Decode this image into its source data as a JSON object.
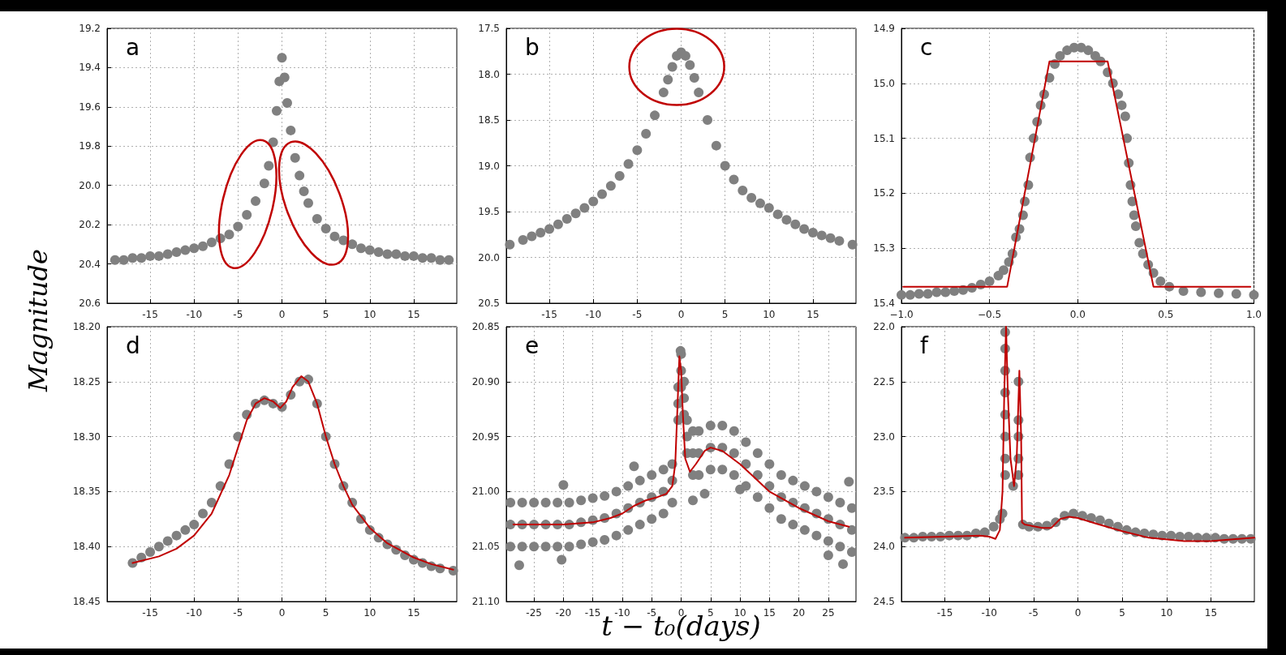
{
  "chart_data": [
    {
      "type": "scatter",
      "title": "a",
      "ylabel": "Magnitude",
      "xlim": [
        -19.9,
        19.9
      ],
      "ylim": [
        20.6,
        19.2
      ],
      "xticks": [
        -15,
        -10,
        -5,
        0,
        5,
        10,
        15
      ],
      "yticks": [
        19.2,
        19.4,
        19.6,
        19.8,
        {
          "value": 20,
          "label": "20.0"
        },
        20.2,
        20.4,
        20.6
      ],
      "grid": true,
      "marker": "circle",
      "series": [
        {
          "type": "scatter",
          "color": "#808080",
          "x": [
            -19,
            -18,
            -17,
            -16,
            -15,
            -14,
            -13,
            -12,
            -11,
            -10,
            -9,
            -8,
            -7,
            -6,
            -5,
            -4,
            -3,
            -2,
            -1.5,
            -1,
            -0.6,
            -0.3,
            0,
            0.3,
            0.6,
            1,
            1.5,
            2,
            2.5,
            3,
            4,
            5,
            6,
            7,
            8,
            9,
            10,
            11,
            12,
            13,
            14,
            15,
            16,
            17,
            18,
            19
          ],
          "values": [
            20.38,
            20.38,
            20.37,
            20.37,
            20.36,
            20.36,
            20.35,
            20.34,
            20.33,
            20.32,
            20.31,
            20.29,
            20.27,
            20.25,
            20.21,
            20.15,
            20.08,
            19.99,
            19.9,
            19.78,
            19.62,
            19.47,
            19.35,
            19.45,
            19.58,
            19.72,
            19.86,
            19.95,
            20.03,
            20.09,
            20.17,
            20.22,
            20.26,
            20.28,
            20.3,
            20.32,
            20.33,
            20.34,
            20.35,
            20.35,
            20.36,
            20.36,
            20.37,
            20.37,
            20.38,
            20.38
          ]
        }
      ]
    },
    {
      "type": "scatter",
      "title": "b",
      "xlim": [
        -19.9,
        19.9
      ],
      "ylim": [
        20.5,
        17.5
      ],
      "xticks": [
        -15,
        -10,
        -5,
        0,
        5,
        10,
        15
      ],
      "yticks": [
        17.5,
        {
          "value": 18,
          "label": "18.0"
        },
        18.5,
        {
          "value": 19,
          "label": "19.0"
        },
        19.5,
        {
          "value": 20,
          "label": "20.0"
        },
        20.5
      ],
      "grid": true,
      "marker": "circle",
      "series": [
        {
          "type": "scatter",
          "color": "#808080",
          "x": [
            -19.5,
            -18,
            -17,
            -16,
            -15,
            -14,
            -13,
            -12,
            -11,
            -10,
            -9,
            -8,
            -7,
            -6,
            -5,
            -4,
            -3,
            -2,
            -1.5,
            -1,
            -0.5,
            0,
            0.5,
            1,
            1.5,
            2,
            3,
            4,
            5,
            6,
            7,
            8,
            9,
            10,
            11,
            12,
            13,
            14,
            15,
            16,
            17,
            18,
            19.5
          ],
          "values": [
            19.86,
            19.81,
            19.77,
            19.73,
            19.69,
            19.64,
            19.58,
            19.52,
            19.46,
            19.39,
            19.31,
            19.22,
            19.11,
            18.98,
            18.83,
            18.65,
            18.45,
            18.2,
            18.06,
            17.92,
            17.8,
            17.76,
            17.8,
            17.9,
            18.04,
            18.2,
            18.5,
            18.78,
            19.0,
            19.15,
            19.27,
            19.35,
            19.41,
            19.46,
            19.53,
            19.59,
            19.64,
            19.69,
            19.73,
            19.76,
            19.79,
            19.82,
            19.86
          ]
        }
      ]
    },
    {
      "type": "scatter",
      "title": "c",
      "xlim": [
        -1,
        1
      ],
      "ylim": [
        15.4,
        14.9
      ],
      "xticks": [
        {
          "value": -1,
          "label": "−1.0"
        },
        {
          "value": -0.5,
          "label": "−0.5"
        },
        {
          "value": 0,
          "label": "0.0"
        },
        0.5,
        {
          "value": 1,
          "label": "1.0"
        }
      ],
      "yticks": [
        14.9,
        {
          "value": 15,
          "label": "15.0"
        },
        15.1,
        15.2,
        15.3,
        15.4
      ],
      "grid": true,
      "marker": "circle",
      "series": [
        {
          "type": "scatter",
          "color": "#808080",
          "x": [
            -1,
            -0.95,
            -0.9,
            -0.85,
            -0.8,
            -0.75,
            -0.7,
            -0.65,
            -0.6,
            -0.55,
            -0.5,
            -0.45,
            -0.42,
            -0.39,
            -0.37,
            -0.35,
            -0.33,
            -0.31,
            -0.3,
            -0.28,
            -0.27,
            -0.25,
            -0.23,
            -0.21,
            -0.19,
            -0.16,
            -0.13,
            -0.1,
            -0.06,
            -0.02,
            0.02,
            0.06,
            0.1,
            0.13,
            0.17,
            0.2,
            0.23,
            0.25,
            0.27,
            0.28,
            0.29,
            0.3,
            0.31,
            0.32,
            0.33,
            0.35,
            0.37,
            0.4,
            0.43,
            0.47,
            0.52,
            0.6,
            0.7,
            0.8,
            0.9,
            1
          ],
          "values": [
            15.385,
            15.385,
            15.383,
            15.383,
            15.38,
            15.38,
            15.378,
            15.376,
            15.372,
            15.366,
            15.36,
            15.35,
            15.34,
            15.325,
            15.31,
            15.28,
            15.265,
            15.24,
            15.215,
            15.185,
            15.135,
            15.1,
            15.07,
            15.04,
            15.02,
            14.99,
            14.965,
            14.95,
            14.94,
            14.935,
            14.935,
            14.94,
            14.95,
            14.96,
            14.98,
            15.0,
            15.02,
            15.04,
            15.06,
            15.1,
            15.145,
            15.185,
            15.215,
            15.24,
            15.26,
            15.29,
            15.31,
            15.33,
            15.345,
            15.36,
            15.37,
            15.378,
            15.38,
            15.382,
            15.383,
            15.385
          ]
        },
        {
          "type": "line",
          "color": "#c00000",
          "marker": "none",
          "line_style": "solid",
          "x": [
            -0.99,
            -0.4,
            -0.16,
            0.17,
            0.43,
            0.98
          ],
          "values": [
            15.37,
            15.37,
            14.96,
            14.96,
            15.37,
            15.37
          ]
        }
      ]
    },
    {
      "type": "scatter",
      "title": "d",
      "xlim": [
        -19.9,
        19.9
      ],
      "ylim": [
        18.45,
        18.2
      ],
      "xticks": [
        -15,
        -10,
        -5,
        0,
        5,
        10,
        15
      ],
      "yticks": [
        {
          "value": 18.2,
          "label": "18.20"
        },
        18.25,
        {
          "value": 18.3,
          "label": "18.30"
        },
        18.35,
        {
          "value": 18.4,
          "label": "18.40"
        },
        18.45
      ],
      "grid": true,
      "marker": "circle",
      "series": [
        {
          "type": "scatter",
          "color": "#808080",
          "x": [
            -17,
            -16,
            -15,
            -14,
            -13,
            -12,
            -11,
            -10,
            -9,
            -8,
            -7,
            -6,
            -5,
            -4,
            -3,
            -2,
            -1,
            0,
            1,
            2,
            3,
            4,
            5,
            6,
            7,
            8,
            9,
            10,
            11,
            12,
            13,
            14,
            15,
            16,
            17,
            18,
            19.5
          ],
          "values": [
            18.415,
            18.41,
            18.405,
            18.4,
            18.395,
            18.39,
            18.385,
            18.38,
            18.37,
            18.36,
            18.345,
            18.325,
            18.3,
            18.28,
            18.27,
            18.267,
            18.27,
            18.273,
            18.262,
            18.25,
            18.248,
            18.27,
            18.3,
            18.325,
            18.345,
            18.36,
            18.375,
            18.385,
            18.392,
            18.398,
            18.403,
            18.408,
            18.412,
            18.415,
            18.418,
            18.42,
            18.422
          ]
        },
        {
          "type": "line",
          "color": "#c00000",
          "marker": "none",
          "line_style": "solid",
          "x": [
            -17,
            -14,
            -12,
            -10,
            -8,
            -6,
            -5,
            -4,
            -3,
            -2,
            -1,
            -0.2,
            0.5,
            1.2,
            2.2,
            3,
            4,
            5,
            6,
            7,
            8,
            10,
            12,
            15,
            17,
            19.5
          ],
          "values": [
            18.415,
            18.409,
            18.402,
            18.39,
            18.37,
            18.335,
            18.31,
            18.285,
            18.27,
            18.265,
            18.268,
            18.274,
            18.268,
            18.255,
            18.245,
            18.25,
            18.27,
            18.3,
            18.325,
            18.345,
            18.362,
            18.383,
            18.397,
            18.41,
            18.416,
            18.421
          ]
        }
      ]
    },
    {
      "type": "scatter",
      "title": "e",
      "xlabel": "t − t₀(days)",
      "xlim": [
        -29.7,
        29.7
      ],
      "ylim": [
        21.1,
        20.85
      ],
      "xticks": [
        -25,
        -20,
        -15,
        -10,
        -5,
        0,
        5,
        10,
        15,
        20,
        25
      ],
      "yticks": [
        20.85,
        {
          "value": 20.9,
          "label": "20.90"
        },
        20.95,
        {
          "value": 21,
          "label": "21.00"
        },
        21.05,
        {
          "value": 21.1,
          "label": "21.10"
        }
      ],
      "grid": true,
      "marker": "circle",
      "series": [
        {
          "type": "scatter",
          "color": "#808080",
          "x": [
            -29,
            -29,
            -29,
            -27,
            -27,
            -27,
            -25,
            -25,
            -25,
            -23,
            -23,
            -23,
            -21,
            -21,
            -21,
            -19,
            -19,
            -19,
            -17,
            -17,
            -17,
            -15,
            -15,
            -15,
            -13,
            -13,
            -13,
            -11,
            -11,
            -11,
            -9,
            -9,
            -9,
            -7,
            -7,
            -7,
            -5,
            -5,
            -5,
            -3,
            -3,
            -3,
            -1.5,
            -1.5,
            -1.5,
            -0.5,
            -0.5,
            -0.5,
            0,
            0,
            0,
            0.5,
            0.5,
            0.5,
            1,
            1,
            1,
            2,
            2,
            2,
            3,
            3,
            3,
            5,
            5,
            5,
            7,
            7,
            7,
            9,
            9,
            9,
            11,
            11,
            11,
            13,
            13,
            13,
            15,
            15,
            15,
            17,
            17,
            17,
            19,
            19,
            19,
            21,
            21,
            21,
            23,
            23,
            23,
            25,
            25,
            25,
            27,
            27,
            27,
            29,
            29,
            29,
            -27.5,
            -20,
            -8,
            -20.3,
            2,
            4,
            10,
            25,
            27.5,
            28.5,
            -0.1
          ],
          "values": [
            21.01,
            21.03,
            21.05,
            21.01,
            21.03,
            21.05,
            21.01,
            21.03,
            21.05,
            21.01,
            21.03,
            21.05,
            21.01,
            21.03,
            21.05,
            21.01,
            21.03,
            21.05,
            21.008,
            21.028,
            21.048,
            21.006,
            21.026,
            21.046,
            21.004,
            21.024,
            21.044,
            21.0,
            21.02,
            21.04,
            20.995,
            21.015,
            21.035,
            20.99,
            21.01,
            21.03,
            20.985,
            21.005,
            21.025,
            20.98,
            21.0,
            21.02,
            20.975,
            20.99,
            21.01,
            20.905,
            20.92,
            20.935,
            20.875,
            20.89,
            20.905,
            20.9,
            20.915,
            20.93,
            20.935,
            20.95,
            20.965,
            20.945,
            20.965,
            20.985,
            20.945,
            20.965,
            20.985,
            20.94,
            20.96,
            20.98,
            20.94,
            20.96,
            20.98,
            20.945,
            20.965,
            20.985,
            20.955,
            20.975,
            20.995,
            20.965,
            20.985,
            21.005,
            20.975,
            20.995,
            21.015,
            20.985,
            21.005,
            21.025,
            20.99,
            21.01,
            21.03,
            20.995,
            21.015,
            21.035,
            21.0,
            21.02,
            21.04,
            21.005,
            21.025,
            21.045,
            21.01,
            21.03,
            21.05,
            21.015,
            21.035,
            21.055,
            21.067,
            20.994,
            20.977,
            21.062,
            21.008,
            21.002,
            20.998,
            21.058,
            21.066,
            20.991,
            20.872
          ]
        },
        {
          "type": "line",
          "color": "#c00000",
          "marker": "none",
          "line_style": "solid",
          "x": [
            -28.5,
            -20,
            -15,
            -12,
            -10,
            -8,
            -6,
            -4,
            -2.5,
            -1.5,
            -1,
            -0.6,
            -0.3,
            0,
            0.3,
            0.7,
            1.5,
            2.5,
            4,
            5,
            7,
            10,
            13,
            15,
            20,
            25,
            28.5
          ],
          "values": [
            21.03,
            21.03,
            21.028,
            21.024,
            21.02,
            21.013,
            21.008,
            21.005,
            21.002,
            20.995,
            20.975,
            20.92,
            20.877,
            20.89,
            20.93,
            20.97,
            20.982,
            20.975,
            20.963,
            20.96,
            20.963,
            20.975,
            20.99,
            21.0,
            21.015,
            21.027,
            21.032
          ]
        }
      ]
    },
    {
      "type": "scatter",
      "title": "f",
      "xlim": [
        -19.9,
        19.9
      ],
      "ylim": [
        24.5,
        22
      ],
      "xticks": [
        -15,
        -10,
        -5,
        0,
        5,
        10,
        15
      ],
      "yticks": [
        {
          "value": 22,
          "label": "22.0"
        },
        22.5,
        {
          "value": 23,
          "label": "23.0"
        },
        23.5,
        {
          "value": 24,
          "label": "24.0"
        },
        24.5
      ],
      "grid": true,
      "marker": "circle",
      "series": [
        {
          "type": "scatter",
          "color": "#808080",
          "x": [
            -19.5,
            -18.5,
            -17.5,
            -16.5,
            -15.5,
            -14.5,
            -13.5,
            -12.5,
            -11.5,
            -10.5,
            -9.5,
            -8.8,
            -8.5,
            -8.2,
            -8.2,
            -8.2,
            -8.2,
            -8.2,
            -8.2,
            -8.2,
            -8.2,
            -7.3,
            -6.7,
            -6.7,
            -6.7,
            -6.7,
            -6.7,
            -6.2,
            -5.5,
            -4.5,
            -3.5,
            -2.5,
            -1.5,
            -0.5,
            0.5,
            1.5,
            2.5,
            3.5,
            4.5,
            5.5,
            6.5,
            7.5,
            8.5,
            9.5,
            10.5,
            11.5,
            12.5,
            13.5,
            14.5,
            15.5,
            16.5,
            17.5,
            18.5,
            19.5
          ],
          "values": [
            23.92,
            23.92,
            23.91,
            23.91,
            23.91,
            23.9,
            23.9,
            23.9,
            23.88,
            23.87,
            23.82,
            23.75,
            23.7,
            22.05,
            22.2,
            22.4,
            22.6,
            22.8,
            23.0,
            23.2,
            23.35,
            23.45,
            22.5,
            22.85,
            23.0,
            23.2,
            23.35,
            23.8,
            23.82,
            23.82,
            23.81,
            23.78,
            23.72,
            23.7,
            23.72,
            23.74,
            23.76,
            23.79,
            23.82,
            23.85,
            23.87,
            23.88,
            23.89,
            23.9,
            23.9,
            23.91,
            23.91,
            23.92,
            23.92,
            23.92,
            23.93,
            23.93,
            23.93,
            23.93
          ]
        },
        {
          "type": "line",
          "color": "#c00000",
          "marker": "none",
          "line_style": "solid",
          "x": [
            -19.5,
            -15,
            -11,
            -10,
            -9.3,
            -8.8,
            -8.5,
            -8.3,
            -8.1,
            -7.9,
            -7.6,
            -7.2,
            -6.9,
            -6.6,
            -6.4,
            -6.3,
            -6,
            -4,
            -3,
            -2,
            -1,
            0,
            2,
            5,
            8,
            12,
            15,
            19.9
          ],
          "values": [
            23.92,
            23.91,
            23.9,
            23.91,
            23.93,
            23.85,
            23.5,
            22.6,
            22.0,
            22.6,
            23.2,
            23.45,
            23.2,
            22.4,
            23.0,
            23.78,
            23.8,
            23.83,
            23.83,
            23.75,
            23.73,
            23.74,
            23.79,
            23.86,
            23.92,
            23.95,
            23.95,
            23.92
          ]
        }
      ]
    }
  ]
}
